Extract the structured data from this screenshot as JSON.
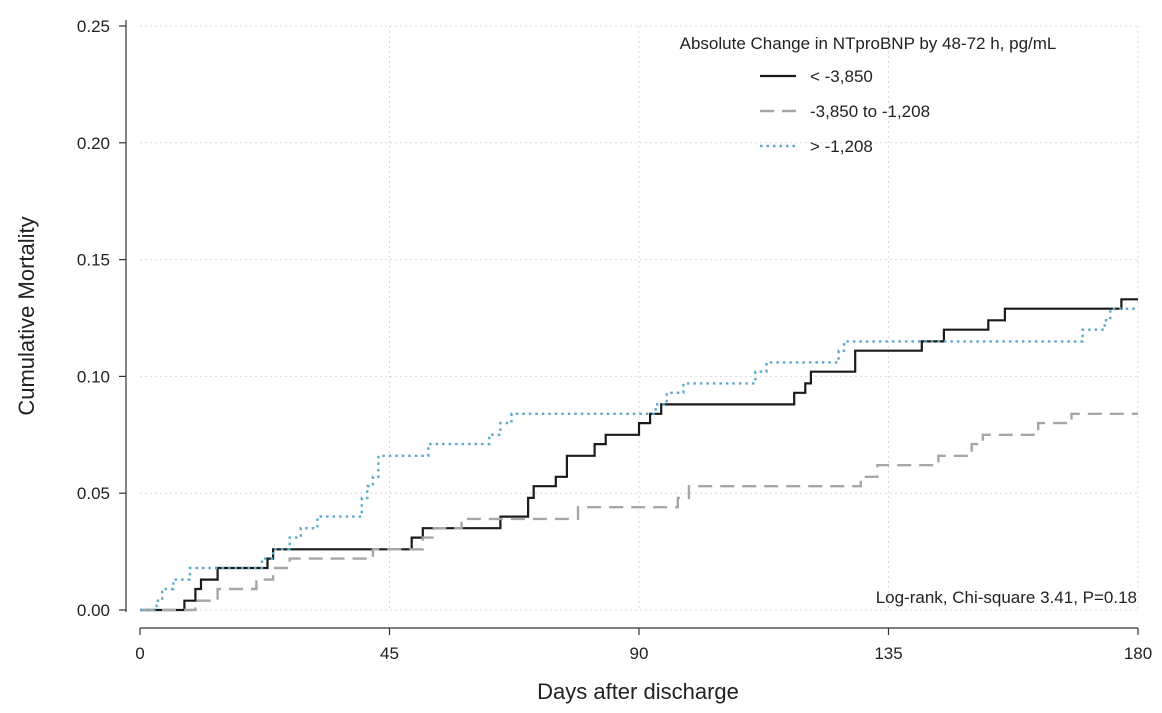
{
  "chart_data": {
    "type": "line",
    "title": "",
    "xlabel": "Days after discharge",
    "ylabel": "Cumulative Mortality",
    "xlim": [
      0,
      180
    ],
    "ylim": [
      0,
      0.25
    ],
    "x_ticks": [
      0,
      45,
      90,
      135,
      180
    ],
    "x_tick_labels": [
      "0",
      "45",
      "90",
      "135",
      "180"
    ],
    "y_ticks": [
      0,
      0.05,
      0.1,
      0.15,
      0.2,
      0.25
    ],
    "y_tick_labels": [
      "0.00",
      "0.05",
      "0.10",
      "0.15",
      "0.20",
      "0.25"
    ],
    "grid": true,
    "legend": {
      "title": "Absolute Change in NTproBNP by 48-72 h, pg/mL",
      "position": "top-right"
    },
    "annotation": "Log-rank, Chi-square 3.41, P=0.18",
    "series": [
      {
        "name": "< -3,850",
        "style": "solid",
        "color": "#1a1a1a",
        "step": true,
        "points": [
          [
            0,
            0
          ],
          [
            8,
            0
          ],
          [
            8,
            0.004
          ],
          [
            10,
            0.004
          ],
          [
            10,
            0.009
          ],
          [
            11,
            0.009
          ],
          [
            11,
            0.013
          ],
          [
            14,
            0.013
          ],
          [
            14,
            0.018
          ],
          [
            23,
            0.018
          ],
          [
            23,
            0.022
          ],
          [
            24,
            0.022
          ],
          [
            24,
            0.026
          ],
          [
            49,
            0.026
          ],
          [
            49,
            0.031
          ],
          [
            51,
            0.031
          ],
          [
            51,
            0.035
          ],
          [
            65,
            0.035
          ],
          [
            65,
            0.04
          ],
          [
            70,
            0.04
          ],
          [
            70,
            0.048
          ],
          [
            71,
            0.048
          ],
          [
            71,
            0.053
          ],
          [
            75,
            0.053
          ],
          [
            75,
            0.057
          ],
          [
            77,
            0.057
          ],
          [
            77,
            0.066
          ],
          [
            82,
            0.066
          ],
          [
            82,
            0.071
          ],
          [
            84,
            0.071
          ],
          [
            84,
            0.075
          ],
          [
            90,
            0.075
          ],
          [
            90,
            0.08
          ],
          [
            92,
            0.08
          ],
          [
            92,
            0.084
          ],
          [
            94,
            0.084
          ],
          [
            94,
            0.088
          ],
          [
            118,
            0.088
          ],
          [
            118,
            0.093
          ],
          [
            120,
            0.093
          ],
          [
            120,
            0.097
          ],
          [
            121,
            0.097
          ],
          [
            121,
            0.102
          ],
          [
            129,
            0.102
          ],
          [
            129,
            0.111
          ],
          [
            141,
            0.111
          ],
          [
            141,
            0.115
          ],
          [
            145,
            0.115
          ],
          [
            145,
            0.12
          ],
          [
            153,
            0.12
          ],
          [
            153,
            0.124
          ],
          [
            156,
            0.124
          ],
          [
            156,
            0.129
          ],
          [
            177,
            0.129
          ],
          [
            177,
            0.133
          ],
          [
            180,
            0.133
          ]
        ]
      },
      {
        "name": "-3,850 to -1,208",
        "style": "dashed",
        "color": "#a6a6a6",
        "step": true,
        "points": [
          [
            0,
            0
          ],
          [
            10,
            0
          ],
          [
            10,
            0.004
          ],
          [
            14,
            0.004
          ],
          [
            14,
            0.009
          ],
          [
            21,
            0.009
          ],
          [
            21,
            0.013
          ],
          [
            24,
            0.013
          ],
          [
            24,
            0.018
          ],
          [
            27,
            0.018
          ],
          [
            27,
            0.022
          ],
          [
            42,
            0.022
          ],
          [
            42,
            0.026
          ],
          [
            51,
            0.026
          ],
          [
            51,
            0.031
          ],
          [
            53,
            0.031
          ],
          [
            53,
            0.035
          ],
          [
            58,
            0.035
          ],
          [
            58,
            0.039
          ],
          [
            79,
            0.039
          ],
          [
            79,
            0.044
          ],
          [
            97,
            0.044
          ],
          [
            97,
            0.048
          ],
          [
            99,
            0.048
          ],
          [
            99,
            0.053
          ],
          [
            130,
            0.053
          ],
          [
            130,
            0.057
          ],
          [
            133,
            0.057
          ],
          [
            133,
            0.062
          ],
          [
            144,
            0.062
          ],
          [
            144,
            0.066
          ],
          [
            150,
            0.066
          ],
          [
            150,
            0.071
          ],
          [
            152,
            0.071
          ],
          [
            152,
            0.075
          ],
          [
            162,
            0.075
          ],
          [
            162,
            0.08
          ],
          [
            168,
            0.08
          ],
          [
            168,
            0.084
          ],
          [
            180,
            0.084
          ]
        ]
      },
      {
        "name": "> -1,208",
        "style": "dotted",
        "color": "#5aa9c9",
        "step": true,
        "points": [
          [
            0,
            0
          ],
          [
            3,
            0
          ],
          [
            3,
            0.004
          ],
          [
            4,
            0.004
          ],
          [
            4,
            0.009
          ],
          [
            6,
            0.009
          ],
          [
            6,
            0.013
          ],
          [
            9,
            0.013
          ],
          [
            9,
            0.018
          ],
          [
            22,
            0.018
          ],
          [
            22,
            0.022
          ],
          [
            24,
            0.022
          ],
          [
            24,
            0.026
          ],
          [
            27,
            0.026
          ],
          [
            27,
            0.031
          ],
          [
            29,
            0.031
          ],
          [
            29,
            0.035
          ],
          [
            32,
            0.035
          ],
          [
            32,
            0.04
          ],
          [
            40,
            0.04
          ],
          [
            40,
            0.048
          ],
          [
            41,
            0.048
          ],
          [
            41,
            0.053
          ],
          [
            42,
            0.053
          ],
          [
            42,
            0.057
          ],
          [
            43,
            0.057
          ],
          [
            43,
            0.066
          ],
          [
            52,
            0.066
          ],
          [
            52,
            0.071
          ],
          [
            63,
            0.071
          ],
          [
            63,
            0.075
          ],
          [
            65,
            0.075
          ],
          [
            65,
            0.08
          ],
          [
            67,
            0.08
          ],
          [
            67,
            0.084
          ],
          [
            93,
            0.084
          ],
          [
            93,
            0.088
          ],
          [
            95,
            0.088
          ],
          [
            95,
            0.093
          ],
          [
            98,
            0.093
          ],
          [
            98,
            0.097
          ],
          [
            111,
            0.097
          ],
          [
            111,
            0.102
          ],
          [
            113,
            0.102
          ],
          [
            113,
            0.106
          ],
          [
            126,
            0.106
          ],
          [
            126,
            0.111
          ],
          [
            127,
            0.111
          ],
          [
            127,
            0.115
          ],
          [
            170,
            0.115
          ],
          [
            170,
            0.12
          ],
          [
            174,
            0.12
          ],
          [
            174,
            0.124
          ],
          [
            175,
            0.124
          ],
          [
            175,
            0.129
          ],
          [
            180,
            0.129
          ]
        ]
      }
    ]
  }
}
